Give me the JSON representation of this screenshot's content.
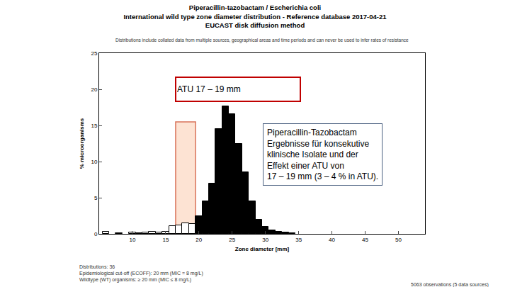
{
  "chart_data": {
    "type": "bar",
    "title": "Piperacillin-tazobactam / Escherichia coli\nInternational wild type zone diameter distribution - Reference database 2017-04-21\nEUCAST disk diffusion method",
    "subtitle": "Distributions include collated data from multiple sources, geographical areas and time periods and can never be used to infer rates of resistance",
    "x_label": "Zone diameter [mm]",
    "y_label": "% microorganisms",
    "x": [
      6,
      7,
      8,
      9,
      10,
      11,
      12,
      13,
      14,
      15,
      16,
      17,
      18,
      19,
      20,
      21,
      22,
      23,
      24,
      25,
      26,
      27,
      28,
      29,
      30,
      31,
      32,
      33,
      34
    ],
    "series": [
      {
        "color": "#ffffff",
        "values": [
          0.3,
          null,
          0.1,
          null,
          0.2,
          0.1,
          0.2,
          0.3,
          0.2,
          0.3,
          1.1,
          1.2,
          1.5,
          1.4,
          null,
          null,
          null,
          null,
          null,
          null,
          null,
          null,
          null,
          null,
          null,
          null,
          null,
          null,
          null
        ]
      },
      {
        "color": "#000000",
        "values": [
          null,
          null,
          null,
          null,
          null,
          null,
          null,
          null,
          null,
          null,
          null,
          null,
          null,
          null,
          2.5,
          4.5,
          7.0,
          14.5,
          17.6,
          16.6,
          12.5,
          8.5,
          4.5,
          2.0,
          1.0,
          0.5,
          0.3,
          0.2,
          0.1
        ]
      }
    ],
    "xlim": [
      5,
      54
    ],
    "xticks": [
      10,
      15,
      20,
      25,
      30,
      35,
      40,
      45,
      50
    ],
    "ylim": [
      0,
      25
    ],
    "yticks": [
      0,
      5,
      10,
      15,
      20,
      25
    ],
    "grid": false,
    "atu_box": {
      "x0": 16.5,
      "x1": 19.5,
      "y0": 0,
      "y1": 15.5
    },
    "annotations": [
      {
        "text": "ATU 17 – 19 mm",
        "x": 16.4,
        "y": 21.8
      },
      {
        "text": "Piperacillin-Tazobactam\nErgebnisse für konsekutive\nklinische Isolate und der\nEffekt einer ATU von\n17 – 19 mm (3 – 4 % in ATU).",
        "x": 29.6,
        "y": 15.3
      }
    ],
    "notes": [
      "Distributions: 36",
      "Epidemiological cut-off (ECOFF): 20 mm (MIC = 8 mg/L)",
      "Wildtype (WT) organisms: ≥ 20 mm (MIC ≤ 8 mg/L)"
    ],
    "observations": "5063 observations (5 data sources)"
  }
}
